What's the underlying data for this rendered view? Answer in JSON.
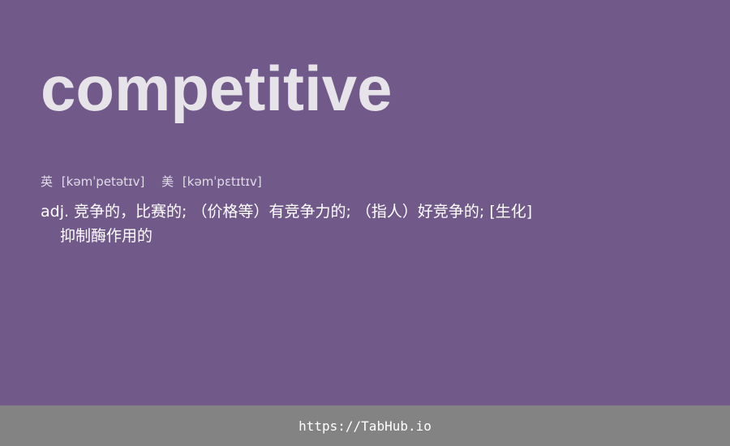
{
  "colors": {
    "background": "#715a8a",
    "word": "#e6e4e8",
    "footer_bg": "#838383",
    "text": "#ffffff"
  },
  "entry": {
    "word": "competitive",
    "phonetics": [
      {
        "lang": "英",
        "ipa": "[kəmˈpetətɪv]"
      },
      {
        "lang": "美",
        "ipa": "[kəmˈpɛtɪtɪv]"
      }
    ],
    "definition": {
      "pos": "adj.",
      "line1": "竞争的，比赛的; （价格等）有竞争力的; （指人）好竞争的; [生化]",
      "line2": "抑制酶作用的"
    }
  },
  "footer": {
    "link": "https://TabHub.io"
  }
}
